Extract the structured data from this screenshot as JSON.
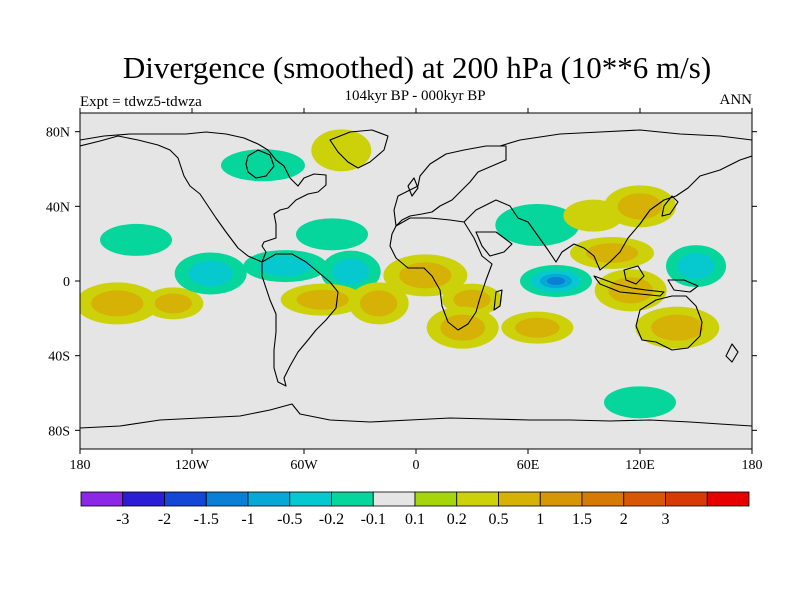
{
  "title": "Divergence (smoothed) at 200 hPa (10**6 m/s)",
  "subtitle": "104kyr BP - 000kyr BP",
  "left_label": "Expt = tdwz5-tdwza",
  "right_label": "ANN",
  "chart_data": {
    "type": "heatmap",
    "projection": "cylindrical-equidistant",
    "variable": "Divergence (smoothed) at 200 hPa",
    "units": "10**6 m/s",
    "xlim": [
      -180,
      180
    ],
    "ylim": [
      -90,
      90
    ],
    "lat_ticks": [
      "80N",
      "40N",
      "0",
      "40S",
      "80S"
    ],
    "lon_ticks": [
      "180",
      "120W",
      "60W",
      "0",
      "60E",
      "120E",
      "180"
    ],
    "colorbar": {
      "colors": [
        "#8d27e6",
        "#2b1cd6",
        "#1547d6",
        "#0a7fd6",
        "#06a9d6",
        "#06c9cf",
        "#06d69c",
        "#e5e5e5",
        "#a4d60a",
        "#ccd10a",
        "#d6b106",
        "#d69606",
        "#d67a06",
        "#d65806",
        "#d63b06",
        "#e60000"
      ],
      "levels": [
        "-3",
        "-2",
        "-1.5",
        "-1",
        "-0.5",
        "-0.2",
        "-0.1",
        "0.1",
        "0.2",
        "0.5",
        "1",
        "1.5",
        "2",
        "3"
      ]
    },
    "features": [
      {
        "region": "Eastern Indian Ocean",
        "lon": 75,
        "lat": 0,
        "value": -1.5
      },
      {
        "region": "Maritime Continent",
        "lon": 115,
        "lat": -5,
        "value": 0.5
      },
      {
        "region": "Indochina / S. China Sea",
        "lon": 105,
        "lat": 15,
        "value": 0.5
      },
      {
        "region": "Western Pacific ITCZ",
        "lon": 150,
        "lat": 8,
        "value": -0.5
      },
      {
        "region": "North Pacific subtropics",
        "lon": -150,
        "lat": 22,
        "value": -0.2
      },
      {
        "region": "South Pacific (SPCZ)",
        "lon": -160,
        "lat": -12,
        "value": 0.5
      },
      {
        "region": "Central South Pacific",
        "lon": -130,
        "lat": -12,
        "value": 0.5
      },
      {
        "region": "Eastern Tropical Pacific",
        "lon": -110,
        "lat": 4,
        "value": -0.5
      },
      {
        "region": "Amazon / Central America",
        "lon": -70,
        "lat": 8,
        "value": -0.5
      },
      {
        "region": "Tropical Atlantic",
        "lon": -35,
        "lat": 5,
        "value": -0.5
      },
      {
        "region": "North Atlantic subtropics",
        "lon": -45,
        "lat": 25,
        "value": -0.2
      },
      {
        "region": "West Africa / Sahel",
        "lon": 5,
        "lat": 3,
        "value": 0.5
      },
      {
        "region": "Eastern Africa",
        "lon": 30,
        "lat": -10,
        "value": 0.5
      },
      {
        "region": "Southern Africa",
        "lon": 25,
        "lat": -25,
        "value": 0.5
      },
      {
        "region": "Tropical South America",
        "lon": -50,
        "lat": -10,
        "value": 0.5
      },
      {
        "region": "South Atlantic",
        "lon": -20,
        "lat": -12,
        "value": 0.5
      },
      {
        "region": "Southern Indian Ocean",
        "lon": 65,
        "lat": -25,
        "value": 0.5
      },
      {
        "region": "Central Asia",
        "lon": 65,
        "lat": 30,
        "value": -0.2
      },
      {
        "region": "Tibet / East Asia",
        "lon": 95,
        "lat": 35,
        "value": 0.2
      },
      {
        "region": "East Asia / Japan",
        "lon": 120,
        "lat": 40,
        "value": 0.5
      },
      {
        "region": "Hudson Bay",
        "lon": -82,
        "lat": 62,
        "value": -0.2
      },
      {
        "region": "Greenland",
        "lon": -40,
        "lat": 70,
        "value": 0.2
      },
      {
        "region": "Southern Ocean",
        "lon": 120,
        "lat": -65,
        "value": -0.2
      },
      {
        "region": "Eastern Australia",
        "lon": 140,
        "lat": -25,
        "value": 0.5
      }
    ]
  }
}
